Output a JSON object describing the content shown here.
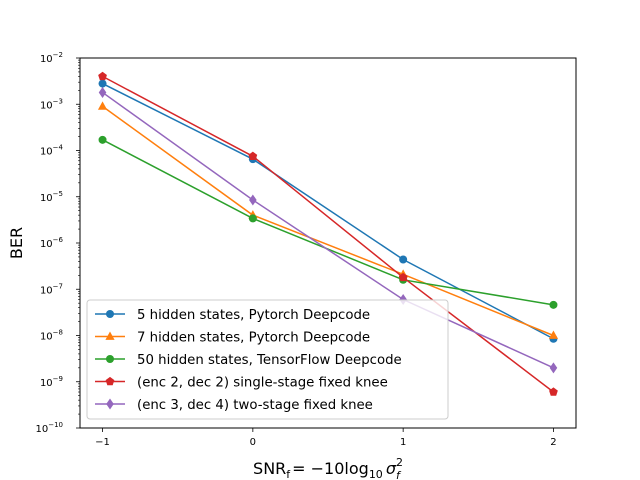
{
  "chart_data": {
    "type": "line",
    "yscale": "log",
    "title": "",
    "xlabel": "SNR_f = -10log10 σ_f^2",
    "xlabel_parts": {
      "base": "SNR",
      "sub": "f",
      "rest": "= −10log",
      "log_sub": "10",
      "sigma": "σ",
      "sigma_sub": "f",
      "sigma_sup": "2"
    },
    "ylabel": "BER",
    "xlim": [
      -1.15,
      2.15
    ],
    "ylim": [
      1e-10,
      0.01
    ],
    "x": [
      -1,
      0,
      1,
      2
    ],
    "xtick_labels": [
      "−1",
      "0",
      "1",
      "2"
    ],
    "ytick_exponents": [
      "−10",
      "−9",
      "−8",
      "−7",
      "−6",
      "−5",
      "−4",
      "−3",
      "−2"
    ],
    "ytick_base": "10",
    "legend_location": "lower-left",
    "series": [
      {
        "name": "5 hidden states, Pytorch Deepcode",
        "color": "#1f77b4",
        "marker": "circle",
        "values": [
          0.0028,
          6.5e-05,
          4.4e-07,
          8.5e-09
        ]
      },
      {
        "name": "7 hidden states, Pytorch Deepcode",
        "color": "#ff7f0e",
        "marker": "triangle",
        "values": [
          0.0009,
          4e-06,
          2.1e-07,
          1e-08
        ]
      },
      {
        "name": "50 hidden states, TensorFlow Deepcode",
        "color": "#2ca02c",
        "marker": "circle",
        "values": [
          0.00017,
          3.4e-06,
          1.6e-07,
          4.6e-08
        ]
      },
      {
        "name": "(enc 2, dec 2) single-stage fixed knee",
        "color": "#d62728",
        "marker": "pentagon",
        "values": [
          0.004,
          7.5e-05,
          1.8e-07,
          6e-10
        ]
      },
      {
        "name": "(enc 3, dec 4) two-stage fixed knee",
        "color": "#9467bd",
        "marker": "diamond",
        "values": [
          0.0018,
          8.5e-06,
          6e-08,
          2e-09
        ]
      }
    ]
  }
}
